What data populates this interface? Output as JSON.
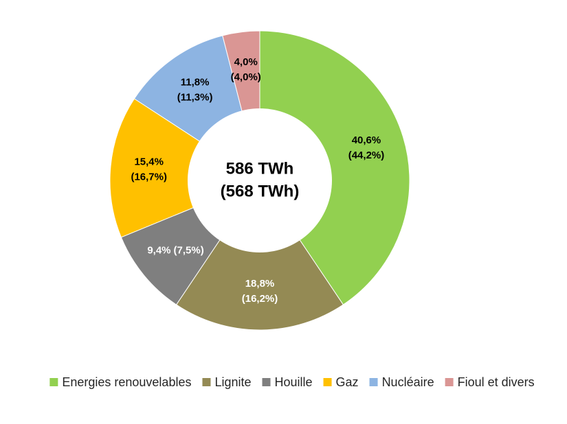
{
  "chart_data": {
    "type": "donut",
    "categories": [
      "Energies renouvelables",
      "Lignite",
      "Houille",
      "Gaz",
      "Nucléaire",
      "Fioul et divers"
    ],
    "values": [
      40.6,
      18.8,
      9.4,
      15.4,
      11.8,
      4.0
    ],
    "value_labels": [
      "40,6%",
      "18,8%",
      "9,4%",
      "15,4%",
      "11,8%",
      "4,0%"
    ],
    "previous_values": [
      44.2,
      16.2,
      7.5,
      16.7,
      11.3,
      4.0
    ],
    "previous_value_labels": [
      "(44,2%)",
      "(16,2%)",
      "(7,5%)",
      "(16,7%)",
      "(11,3%)",
      "(4,0%)"
    ],
    "colors": [
      "#92d050",
      "#948a54",
      "#7f7f7f",
      "#ffc000",
      "#8db4e2",
      "#da9694"
    ],
    "center_labels": [
      "586 TWh",
      "(568 TWh)"
    ],
    "legend": "bottom"
  }
}
